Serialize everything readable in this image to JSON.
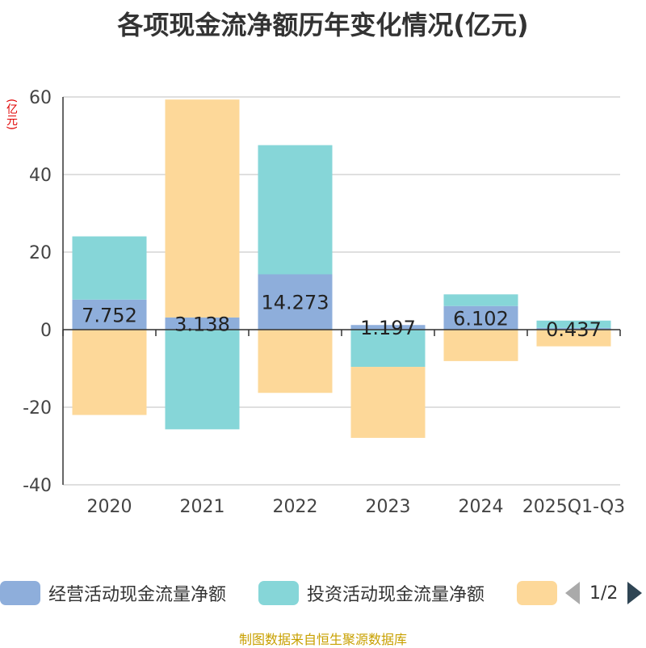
{
  "title": "各项现金流净额历年变化情况(亿元)",
  "unit_label": "(亿元)",
  "source": "制图数据来自恒生聚源数据库",
  "pager": {
    "page": "1/2"
  },
  "colors": {
    "operating": "#8eaedb",
    "investing": "#86d6d8",
    "financing": "#fdd899"
  },
  "chart_data": {
    "type": "bar",
    "stacked": true,
    "categories": [
      "2020",
      "2021",
      "2022",
      "2023",
      "2024",
      "2025Q1-Q3"
    ],
    "ylim": [
      -40,
      60
    ],
    "yticks": [
      60,
      40,
      20,
      0,
      -20,
      -40
    ],
    "grid": true,
    "legend_position": "bottom",
    "series": [
      {
        "name": "经营活动现金流量净额",
        "values": [
          7.752,
          3.138,
          14.273,
          1.197,
          6.102,
          0.437
        ],
        "labels": [
          "7.752",
          "3.138",
          "14.273",
          "1.197",
          "6.102",
          "0.437"
        ]
      },
      {
        "name": "投资活动现金流量净额",
        "values": [
          16.3,
          -25.7,
          33.3,
          -9.6,
          3.0,
          1.9
        ]
      },
      {
        "name": "",
        "values": [
          -22.0,
          56.2,
          -16.3,
          -18.3,
          -8.1,
          -4.3
        ]
      }
    ]
  }
}
